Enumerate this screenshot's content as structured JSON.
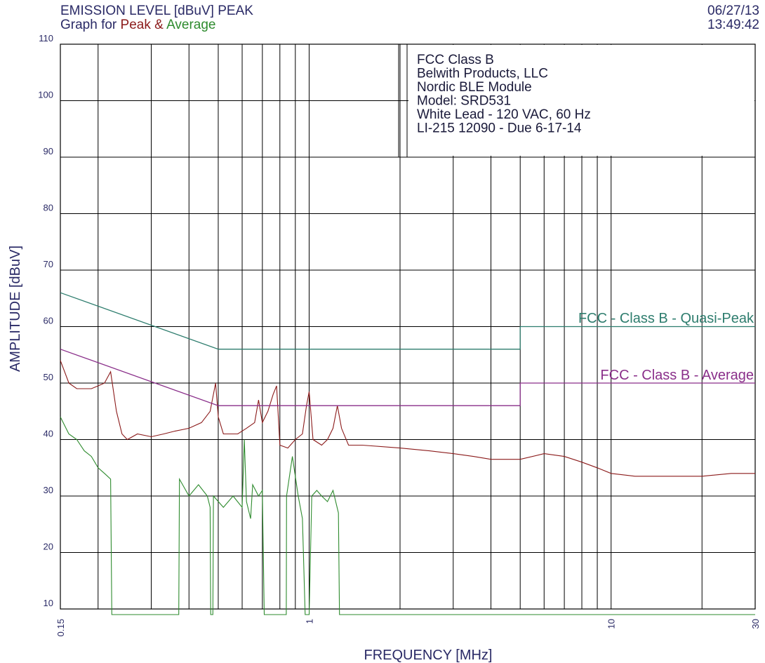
{
  "header": {
    "title": "EMISSION LEVEL [dBuV] PEAK",
    "graph_for": "Graph for",
    "peak_word": "Peak",
    "amp": "&",
    "average_word": "Average",
    "date": "06/27/13",
    "time": "13:49:42"
  },
  "info_box": [
    "FCC Class B",
    "Belwith Products, LLC",
    "Nordic BLE Module",
    "Model:  SRD531",
    "White Lead  -  120 VAC, 60 Hz",
    "LI-215 12090 - Due 6-17-14"
  ],
  "colors": {
    "peak": "#8b1a1a",
    "average": "#2e8b2e",
    "qp_limit": "#2e7d6e",
    "avg_limit": "#8a2f8a",
    "grid": "#000000",
    "text": "#2a2a66"
  },
  "chart_data": {
    "type": "line",
    "title": "EMISSION LEVEL [dBuV] PEAK",
    "xlabel": "FREQUENCY [MHz]",
    "ylabel": "AMPLITUDE [dBuV]",
    "x_scale": "log",
    "xlim": [
      0.15,
      30
    ],
    "ylim": [
      10,
      110
    ],
    "y_ticks": [
      10,
      20,
      30,
      40,
      50,
      60,
      70,
      80,
      90,
      100,
      110
    ],
    "x_ticks": [
      {
        "value": 0.15,
        "label": "0.15"
      },
      {
        "value": 1,
        "label": "1"
      },
      {
        "value": 10,
        "label": "10"
      },
      {
        "value": 30,
        "label": "30"
      }
    ],
    "grid": true,
    "series": [
      {
        "name": "Peak",
        "color": "#8b1a1a",
        "points": [
          [
            0.15,
            54
          ],
          [
            0.155,
            52
          ],
          [
            0.16,
            50
          ],
          [
            0.17,
            49
          ],
          [
            0.18,
            49
          ],
          [
            0.19,
            49
          ],
          [
            0.2,
            49.5
          ],
          [
            0.21,
            50
          ],
          [
            0.22,
            52
          ],
          [
            0.23,
            45
          ],
          [
            0.24,
            41
          ],
          [
            0.25,
            40
          ],
          [
            0.27,
            41
          ],
          [
            0.3,
            40.5
          ],
          [
            0.33,
            41
          ],
          [
            0.36,
            41.5
          ],
          [
            0.4,
            42
          ],
          [
            0.44,
            43
          ],
          [
            0.47,
            45
          ],
          [
            0.49,
            50
          ],
          [
            0.5,
            44
          ],
          [
            0.52,
            41
          ],
          [
            0.55,
            41
          ],
          [
            0.58,
            41
          ],
          [
            0.62,
            42
          ],
          [
            0.66,
            43
          ],
          [
            0.68,
            47
          ],
          [
            0.7,
            43
          ],
          [
            0.73,
            45
          ],
          [
            0.76,
            48
          ],
          [
            0.78,
            49.5
          ],
          [
            0.8,
            39
          ],
          [
            0.85,
            38.5
          ],
          [
            0.9,
            40
          ],
          [
            0.95,
            41
          ],
          [
            0.98,
            46
          ],
          [
            1.0,
            48.5
          ],
          [
            1.03,
            40
          ],
          [
            1.1,
            39
          ],
          [
            1.15,
            40
          ],
          [
            1.2,
            42
          ],
          [
            1.24,
            46
          ],
          [
            1.28,
            42
          ],
          [
            1.35,
            39
          ],
          [
            1.5,
            39
          ],
          [
            2,
            38.5
          ],
          [
            2.5,
            38
          ],
          [
            3,
            37.5
          ],
          [
            3.5,
            37
          ],
          [
            4,
            36.5
          ],
          [
            5,
            36.5
          ],
          [
            6,
            37.5
          ],
          [
            7,
            37
          ],
          [
            8,
            36
          ],
          [
            9,
            35
          ],
          [
            10,
            34
          ],
          [
            12,
            33.5
          ],
          [
            15,
            33.5
          ],
          [
            20,
            33.5
          ],
          [
            25,
            34
          ],
          [
            30,
            34
          ]
        ]
      },
      {
        "name": "Average",
        "color": "#2e8b2e",
        "points": [
          [
            0.15,
            44
          ],
          [
            0.16,
            41
          ],
          [
            0.17,
            40
          ],
          [
            0.18,
            38
          ],
          [
            0.19,
            37
          ],
          [
            0.2,
            35
          ],
          [
            0.21,
            34
          ],
          [
            0.22,
            33
          ],
          [
            0.222,
            9
          ],
          [
            0.37,
            9
          ],
          [
            0.372,
            33
          ],
          [
            0.4,
            30
          ],
          [
            0.43,
            32
          ],
          [
            0.46,
            30
          ],
          [
            0.47,
            28
          ],
          [
            0.472,
            9
          ],
          [
            0.48,
            9
          ],
          [
            0.482,
            30
          ],
          [
            0.52,
            28
          ],
          [
            0.56,
            30
          ],
          [
            0.6,
            28
          ],
          [
            0.61,
            40
          ],
          [
            0.62,
            29
          ],
          [
            0.64,
            26
          ],
          [
            0.65,
            32
          ],
          [
            0.68,
            30
          ],
          [
            0.7,
            31
          ],
          [
            0.71,
            9
          ],
          [
            0.72,
            9
          ],
          [
            0.74,
            9
          ],
          [
            0.76,
            9
          ],
          [
            0.78,
            9
          ],
          [
            0.8,
            9
          ],
          [
            0.82,
            9
          ],
          [
            0.84,
            9
          ],
          [
            0.842,
            30
          ],
          [
            0.88,
            37
          ],
          [
            0.92,
            30
          ],
          [
            0.95,
            26
          ],
          [
            0.97,
            9
          ],
          [
            1.0,
            9
          ],
          [
            1.02,
            30
          ],
          [
            1.06,
            31
          ],
          [
            1.1,
            30
          ],
          [
            1.15,
            29
          ],
          [
            1.2,
            31
          ],
          [
            1.25,
            27
          ],
          [
            1.26,
            9
          ],
          [
            30,
            9
          ]
        ]
      },
      {
        "name": "FCC - Class B - Quasi-Peak",
        "color": "#2e7d6e",
        "points": [
          [
            0.15,
            66
          ],
          [
            0.5,
            56
          ],
          [
            5,
            56
          ],
          [
            5,
            60
          ],
          [
            30,
            60
          ]
        ]
      },
      {
        "name": "FCC - Class B - Average",
        "color": "#8a2f8a",
        "points": [
          [
            0.15,
            56
          ],
          [
            0.5,
            46
          ],
          [
            5,
            46
          ],
          [
            5,
            50
          ],
          [
            30,
            50
          ]
        ]
      }
    ]
  }
}
